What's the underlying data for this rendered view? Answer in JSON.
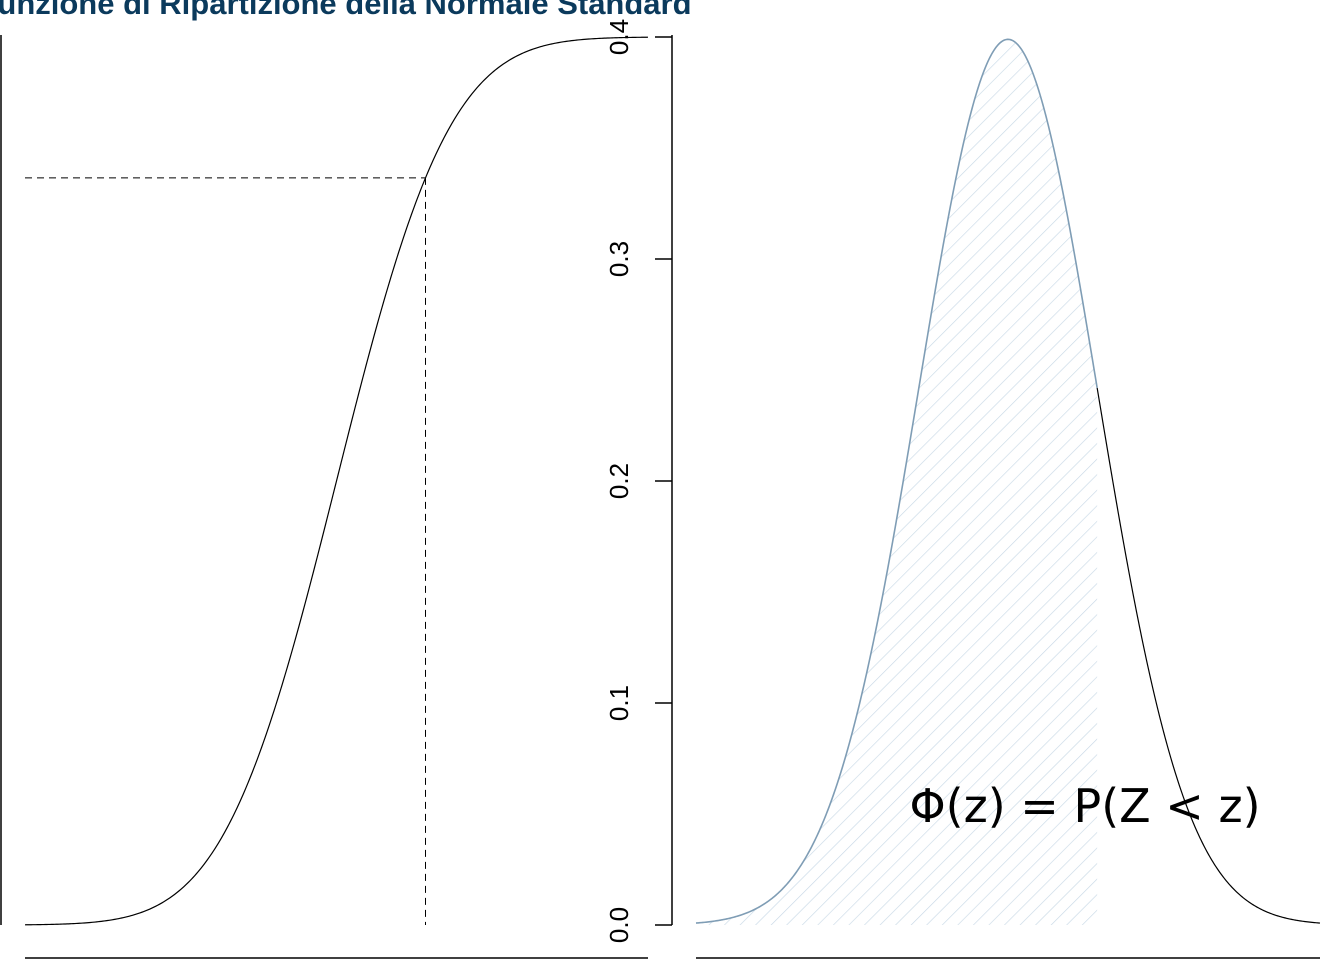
{
  "title": "Funzione di Ripartizione della Normale Standard",
  "formula": "Φ(z) = P(Z < z)",
  "colors": {
    "title": "#0b3a5c",
    "fill_hatch": "#c9d9e6",
    "fill_edge": "#7f9db5",
    "curve": "#000000"
  },
  "chart_data": [
    {
      "type": "line",
      "description_key": "cdf",
      "function": "standard normal CDF",
      "x_range": [
        -3.5,
        3.5
      ],
      "highlight_z": 1.0,
      "highlight_value": 0.8413,
      "ylim": [
        0,
        1
      ],
      "reference_lines": "dashed lines at z and Phi(z)"
    },
    {
      "type": "area",
      "description_key": "pdf",
      "function": "standard normal PDF",
      "x_range": [
        -3.5,
        3.5
      ],
      "shaded_upto_z": 1.0,
      "ylim": [
        0,
        0.4
      ],
      "y_ticks": [
        0.0,
        0.1,
        0.2,
        0.3,
        0.4
      ],
      "y_tick_labels": [
        "0.0",
        "0.1",
        "0.2",
        "0.3",
        "0.4"
      ]
    }
  ]
}
